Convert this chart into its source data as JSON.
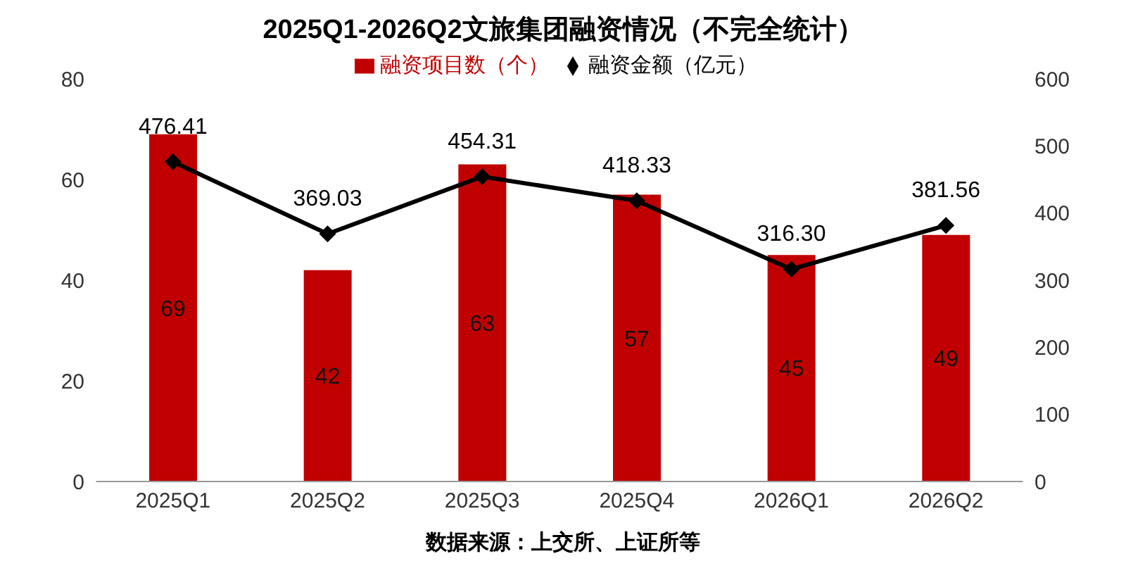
{
  "chart_data": {
    "type": "bar",
    "title": "2025Q1-2026Q2文旅集团融资情况（不完全统计）",
    "categories": [
      "2025Q1",
      "2025Q2",
      "2025Q3",
      "2025Q4",
      "2026Q1",
      "2026Q2"
    ],
    "series": [
      {
        "name": "融资项目数（个）",
        "color": "#c00000",
        "values": [
          69,
          42,
          63,
          57,
          45,
          49
        ],
        "value_labels": [
          "69",
          "42",
          "63",
          "57",
          "45",
          "49"
        ]
      },
      {
        "name": "融资金额（亿元）",
        "type": "line",
        "axis": "y2",
        "color": "#000000",
        "values": [
          476.41,
          369.03,
          454.31,
          418.33,
          316.3,
          381.56
        ],
        "value_labels": [
          "476.41",
          "369.03",
          "454.31",
          "418.33",
          "316.30",
          "381.56"
        ]
      }
    ],
    "ylim": [
      0,
      80
    ],
    "yticks": [
      0,
      20,
      40,
      60,
      80
    ],
    "y2lim": [
      0,
      600
    ],
    "y2ticks": [
      0,
      100,
      200,
      300,
      400,
      500,
      600
    ],
    "grid": false,
    "legend": "top",
    "marker": "diamond",
    "line_style": "solid",
    "annotations": [
      "数据来源：上交所、上证所等"
    ]
  }
}
